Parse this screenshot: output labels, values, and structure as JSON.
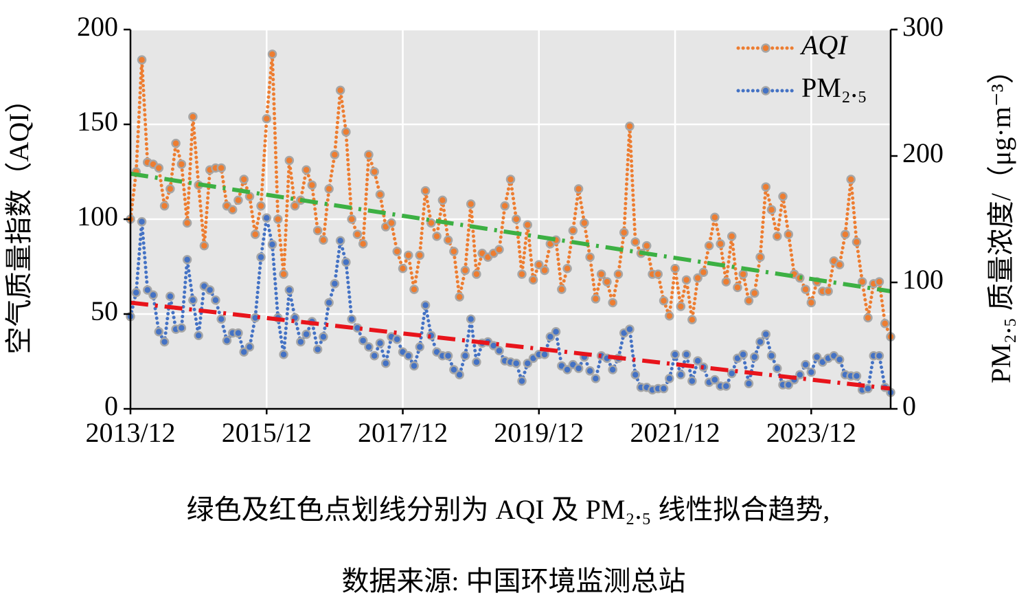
{
  "chart_data": {
    "type": "line",
    "y_label": "空气质量指数（AQI）",
    "y2_label": "PM₂.₅ 质量浓度/（μg·m⁻³）",
    "caption": [
      "绿色及红色点划线分别为 AQI 及 PM₂.₅ 线性拟合趋势,",
      "数据来源: 中国环境监测总站"
    ],
    "categories": [
      "2013/12",
      "2014/01",
      "2014/02",
      "2014/03",
      "2014/04",
      "2014/05",
      "2014/06",
      "2014/07",
      "2014/08",
      "2014/09",
      "2014/10",
      "2014/11",
      "2014/12",
      "2015/01",
      "2015/02",
      "2015/03",
      "2015/04",
      "2015/05",
      "2015/06",
      "2015/07",
      "2015/08",
      "2015/09",
      "2015/10",
      "2015/11",
      "2015/12",
      "2016/01",
      "2016/02",
      "2016/03",
      "2016/04",
      "2016/05",
      "2016/06",
      "2016/07",
      "2016/08",
      "2016/09",
      "2016/10",
      "2016/11",
      "2016/12",
      "2017/01",
      "2017/02",
      "2017/03",
      "2017/04",
      "2017/05",
      "2017/06",
      "2017/07",
      "2017/08",
      "2017/09",
      "2017/10",
      "2017/11",
      "2017/12",
      "2018/01",
      "2018/02",
      "2018/03",
      "2018/04",
      "2018/05",
      "2018/06",
      "2018/07",
      "2018/08",
      "2018/09",
      "2018/10",
      "2018/11",
      "2018/12",
      "2019/01",
      "2019/02",
      "2019/03",
      "2019/04",
      "2019/05",
      "2019/06",
      "2019/07",
      "2019/08",
      "2019/09",
      "2019/10",
      "2019/11",
      "2019/12",
      "2020/01",
      "2020/02",
      "2020/03",
      "2020/04",
      "2020/05",
      "2020/06",
      "2020/07",
      "2020/08",
      "2020/09",
      "2020/10",
      "2020/11",
      "2020/12",
      "2021/01",
      "2021/02",
      "2021/03",
      "2021/04",
      "2021/05",
      "2021/06",
      "2021/07",
      "2021/08",
      "2021/09",
      "2021/10",
      "2021/11",
      "2021/12",
      "2022/01",
      "2022/02",
      "2022/03",
      "2022/04",
      "2022/05",
      "2022/06",
      "2022/07",
      "2022/08",
      "2022/09",
      "2022/10",
      "2022/11",
      "2022/12",
      "2023/01",
      "2023/02",
      "2023/03",
      "2023/04",
      "2023/05",
      "2023/06",
      "2023/07",
      "2023/08",
      "2023/09",
      "2023/10",
      "2023/11",
      "2023/12",
      "2024/01",
      "2024/02",
      "2024/03",
      "2024/04",
      "2024/05",
      "2024/06",
      "2024/07",
      "2024/08",
      "2024/09",
      "2024/10",
      "2024/11",
      "2024/12",
      "2025/01",
      "2025/02"
    ],
    "xticks": [
      "2013/12",
      "2015/12",
      "2017/12",
      "2019/12",
      "2021/12",
      "2023/12"
    ],
    "series": [
      {
        "name": "AQI",
        "color": "#ED7D31",
        "axis": "y",
        "values": [
          100,
          125,
          184,
          130,
          129,
          127,
          107,
          116,
          140,
          129,
          98,
          154,
          118,
          86,
          126,
          127,
          127,
          107,
          105,
          110,
          121,
          112,
          92,
          107,
          153,
          187,
          100,
          71,
          131,
          107,
          110,
          126,
          118,
          94,
          89,
          116,
          134,
          168,
          146,
          100,
          92,
          87,
          134,
          125,
          113,
          96,
          98,
          83,
          74,
          81,
          63,
          81,
          115,
          98,
          91,
          110,
          89,
          83,
          59,
          73,
          108,
          71,
          82,
          80,
          82,
          84,
          107,
          121,
          100,
          71,
          97,
          68,
          76,
          73,
          87,
          89,
          63,
          74,
          94,
          116,
          98,
          80,
          58,
          71,
          67,
          56,
          71,
          93,
          149,
          88,
          82,
          86,
          71,
          71,
          57,
          49,
          74,
          54,
          68,
          47,
          69,
          72,
          86,
          101,
          87,
          67,
          91,
          64,
          71,
          57,
          61,
          80,
          117,
          105,
          91,
          112,
          92,
          71,
          69,
          63,
          56,
          67,
          62,
          62,
          78,
          76,
          92,
          121,
          88,
          67,
          48,
          66,
          67,
          45,
          38
        ]
      },
      {
        "name": "PM₂.₅",
        "color": "#4472C4",
        "axis": "y2",
        "values": [
          73,
          92,
          148,
          94,
          90,
          61,
          53,
          89,
          63,
          64,
          118,
          86,
          58,
          97,
          94,
          86,
          71,
          54,
          60,
          60,
          45,
          49,
          72,
          120,
          151,
          130,
          72,
          43,
          94,
          72,
          53,
          59,
          69,
          47,
          57,
          84,
          99,
          133,
          116,
          71,
          64,
          54,
          49,
          42,
          52,
          36,
          57,
          55,
          45,
          42,
          34,
          49,
          82,
          58,
          45,
          42,
          42,
          31,
          27,
          42,
          71,
          37,
          52,
          53,
          50,
          46,
          38,
          37,
          36,
          22,
          36,
          40,
          43,
          43,
          57,
          61,
          34,
          31,
          35,
          32,
          41,
          30,
          24,
          42,
          40,
          31,
          40,
          60,
          63,
          27,
          17,
          17,
          15,
          16,
          16,
          24,
          43,
          27,
          43,
          22,
          38,
          33,
          21,
          23,
          18,
          18,
          28,
          40,
          43,
          20,
          41,
          53,
          59,
          42,
          32,
          19,
          19,
          23,
          27,
          35,
          29,
          41,
          37,
          40,
          42,
          39,
          27,
          26,
          26,
          15,
          16,
          42,
          42,
          17,
          13
        ]
      }
    ],
    "trend_lines": [
      {
        "color": "#3CB043",
        "axis": "y",
        "x": [
          "2013/12",
          "2025/02"
        ],
        "values": [
          124,
          62
        ]
      },
      {
        "color": "#E8141B",
        "axis": "y2",
        "x": [
          "2013/12",
          "2025/02"
        ],
        "values": [
          84,
          16
        ]
      }
    ],
    "ylim": [
      0,
      200
    ],
    "yticks": [
      0,
      50,
      100,
      150,
      200
    ],
    "y2lim": [
      0,
      300
    ],
    "y2ticks": [
      0,
      100,
      200,
      300
    ],
    "grid": true,
    "legend": "top-right"
  }
}
